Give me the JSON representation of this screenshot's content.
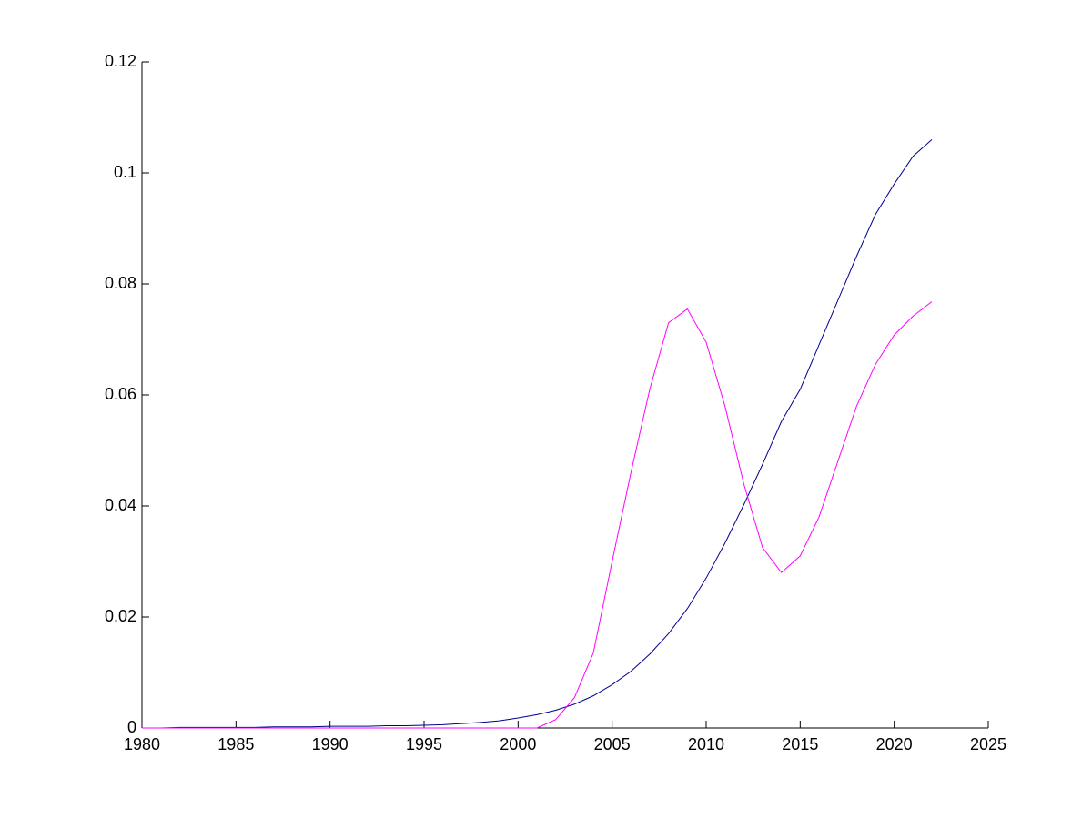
{
  "chart_data": {
    "type": "line",
    "x": [
      1980,
      1981,
      1982,
      1983,
      1984,
      1985,
      1986,
      1987,
      1988,
      1989,
      1990,
      1991,
      1992,
      1993,
      1994,
      1995,
      1996,
      1997,
      1998,
      1999,
      2000,
      2001,
      2002,
      2003,
      2004,
      2005,
      2006,
      2007,
      2008,
      2009,
      2010,
      2011,
      2012,
      2013,
      2014,
      2015,
      2016,
      2017,
      2018,
      2019,
      2020,
      2021,
      2022
    ],
    "series": [
      {
        "color": "#00008f",
        "values": [
          0,
          0,
          0.0001,
          0.0001,
          0.0001,
          0.0001,
          0.0001,
          0.0002,
          0.0002,
          0.0002,
          0.0003,
          0.0003,
          0.0003,
          0.0004,
          0.0004,
          0.0005,
          0.0006,
          0.0008,
          0.001,
          0.0013,
          0.0018,
          0.0024,
          0.0032,
          0.0043,
          0.0058,
          0.0078,
          0.0102,
          0.0133,
          0.017,
          0.0215,
          0.027,
          0.0333,
          0.0402,
          0.0475,
          0.0552,
          0.061,
          0.069,
          0.077,
          0.085,
          0.0925,
          0.098,
          0.103,
          0.106
        ]
      },
      {
        "color": "#ff00ff",
        "values": [
          0,
          0,
          0,
          0,
          0,
          0,
          0,
          0,
          0,
          0,
          0,
          0,
          0,
          0,
          0,
          0,
          0,
          0,
          0,
          0,
          0,
          0,
          0.0015,
          0.0055,
          0.0135,
          0.03,
          0.046,
          0.061,
          0.073,
          0.0755,
          0.0695,
          0.058,
          0.044,
          0.0325,
          0.028,
          0.031,
          0.038,
          0.048,
          0.058,
          0.0655,
          0.0708,
          0.0742,
          0.0768
        ]
      }
    ],
    "xlim": [
      1980,
      2025
    ],
    "xticks": [
      1980,
      1985,
      1990,
      1995,
      2000,
      2005,
      2010,
      2015,
      2020,
      2025
    ],
    "ylim": [
      0,
      0.12
    ],
    "yticks": [
      0,
      0.02,
      0.04,
      0.06,
      0.08,
      0.1,
      0.12
    ]
  }
}
